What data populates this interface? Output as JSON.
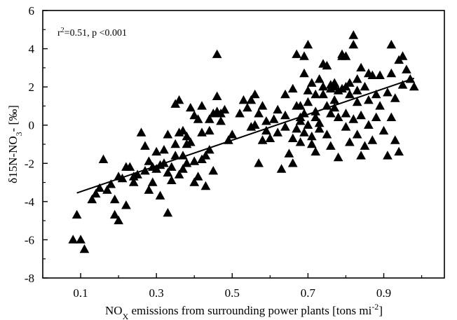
{
  "chart_data": {
    "type": "scatter",
    "xlabel": "NOX emissions from surrounding power plants [tons mi-2]",
    "xlabel_parts": {
      "pre": "NO",
      "sub": "X",
      "post": " emissions from surrounding power plants [tons mi",
      "sup": "-2",
      "end": "]"
    },
    "ylabel": "δ15N-NO3- [‰]",
    "ylabel_parts": {
      "pre": "δ15N-NO",
      "sub": "3",
      "post": "- [‰]"
    },
    "annotation": "r2=0.51, p <0.001",
    "annotation_parts": {
      "pre": "r",
      "sup": "2",
      "post": "=0.51, p <0.001"
    },
    "xlim": [
      0,
      1.06
    ],
    "ylim": [
      -8,
      6
    ],
    "xticks": [
      "0.1",
      "0.3",
      "0.5",
      "0.7",
      "0.9"
    ],
    "xtick_values": [
      0.1,
      0.3,
      0.5,
      0.7,
      0.9
    ],
    "yticks": [
      "6",
      "4",
      "2",
      "0",
      "-2",
      "-4",
      "-6",
      "-8"
    ],
    "ytick_values": [
      6,
      4,
      2,
      0,
      -2,
      -4,
      -6,
      -8
    ],
    "grid": false,
    "marker": "triangle",
    "colors": {
      "marker": "#000000",
      "line": "#000000"
    },
    "trendline": {
      "x": [
        0.09,
        0.98
      ],
      "y": [
        -3.55,
        2.45
      ]
    },
    "points": [
      [
        0.08,
        -6.0
      ],
      [
        0.1,
        -6.0
      ],
      [
        0.11,
        -6.5
      ],
      [
        0.09,
        -4.7
      ],
      [
        0.13,
        -3.9
      ],
      [
        0.14,
        -3.6
      ],
      [
        0.15,
        -3.3
      ],
      [
        0.16,
        -1.8
      ],
      [
        0.18,
        -3.1
      ],
      [
        0.19,
        -4.7
      ],
      [
        0.2,
        -5.0
      ],
      [
        0.19,
        -3.9
      ],
      [
        0.21,
        -2.8
      ],
      [
        0.22,
        -2.2
      ],
      [
        0.23,
        -2.2
      ],
      [
        0.22,
        -4.2
      ],
      [
        0.24,
        -3.0
      ],
      [
        0.25,
        -2.6
      ],
      [
        0.26,
        -0.4
      ],
      [
        0.27,
        -1.1
      ],
      [
        0.28,
        -1.9
      ],
      [
        0.28,
        -3.4
      ],
      [
        0.29,
        -3.0
      ],
      [
        0.3,
        -2.3
      ],
      [
        0.31,
        -2.1
      ],
      [
        0.32,
        -2.0
      ],
      [
        0.31,
        -3.7
      ],
      [
        0.32,
        -1.3
      ],
      [
        0.33,
        -0.5
      ],
      [
        0.33,
        -4.6
      ],
      [
        0.34,
        -2.9
      ],
      [
        0.34,
        -2.2
      ],
      [
        0.35,
        -1.6
      ],
      [
        0.35,
        -1.0
      ],
      [
        0.36,
        -0.4
      ],
      [
        0.36,
        -2.6
      ],
      [
        0.37,
        -0.3
      ],
      [
        0.37,
        -1.6
      ],
      [
        0.38,
        -2.0
      ],
      [
        0.38,
        -1.0
      ],
      [
        0.38,
        -0.6
      ],
      [
        0.39,
        0.9
      ],
      [
        0.4,
        0.5
      ],
      [
        0.4,
        -1.9
      ],
      [
        0.41,
        0.3
      ],
      [
        0.41,
        -2.7
      ],
      [
        0.42,
        -0.4
      ],
      [
        0.42,
        1.0
      ],
      [
        0.43,
        -3.2
      ],
      [
        0.43,
        -1.6
      ],
      [
        0.44,
        -1.3
      ],
      [
        0.45,
        0.6
      ],
      [
        0.46,
        0.7
      ],
      [
        0.46,
        3.7
      ],
      [
        0.46,
        1.5
      ],
      [
        0.47,
        0.6
      ],
      [
        0.48,
        0.8
      ],
      [
        0.49,
        -0.8
      ],
      [
        0.45,
        -2.4
      ],
      [
        0.44,
        -0.3
      ],
      [
        0.36,
        1.3
      ],
      [
        0.39,
        -0.9
      ],
      [
        0.4,
        -3.0
      ],
      [
        0.37,
        -2.3
      ],
      [
        0.33,
        -2.5
      ],
      [
        0.35,
        1.1
      ],
      [
        0.42,
        -1.8
      ],
      [
        0.44,
        0.3
      ],
      [
        0.53,
        1.3
      ],
      [
        0.54,
        0.9
      ],
      [
        0.55,
        1.3
      ],
      [
        0.55,
        -0.1
      ],
      [
        0.56,
        0.0
      ],
      [
        0.57,
        0.6
      ],
      [
        0.58,
        1.0
      ],
      [
        0.59,
        0.2
      ],
      [
        0.59,
        -0.3
      ],
      [
        0.6,
        -0.7
      ],
      [
        0.57,
        -2.0
      ],
      [
        0.56,
        1.6
      ],
      [
        0.61,
        0.3
      ],
      [
        0.62,
        -0.4
      ],
      [
        0.62,
        0.8
      ],
      [
        0.63,
        -2.3
      ],
      [
        0.64,
        0.5
      ],
      [
        0.64,
        1.6
      ],
      [
        0.65,
        -1.5
      ],
      [
        0.66,
        -2.0
      ],
      [
        0.66,
        -0.7
      ],
      [
        0.67,
        3.7
      ],
      [
        0.67,
        -0.2
      ],
      [
        0.68,
        0.4
      ],
      [
        0.68,
        1.0
      ],
      [
        0.68,
        -0.9
      ],
      [
        0.69,
        2.7
      ],
      [
        0.69,
        3.6
      ],
      [
        0.69,
        0.6
      ],
      [
        0.69,
        -0.4
      ],
      [
        0.7,
        1.2
      ],
      [
        0.7,
        0.0
      ],
      [
        0.7,
        4.2
      ],
      [
        0.71,
        2.2
      ],
      [
        0.71,
        -0.6
      ],
      [
        0.71,
        -1.0
      ],
      [
        0.72,
        0.4
      ],
      [
        0.72,
        1.6
      ],
      [
        0.72,
        -1.4
      ],
      [
        0.73,
        0.1
      ],
      [
        0.73,
        2.4
      ],
      [
        0.74,
        3.2
      ],
      [
        0.74,
        1.6
      ],
      [
        0.75,
        1.0
      ],
      [
        0.75,
        -0.5
      ],
      [
        0.75,
        3.1
      ],
      [
        0.76,
        0.6
      ],
      [
        0.76,
        1.9
      ],
      [
        0.76,
        -1.1
      ],
      [
        0.77,
        2.2
      ],
      [
        0.77,
        0.9
      ],
      [
        0.77,
        2.0
      ],
      [
        0.78,
        0.4
      ],
      [
        0.78,
        1.8
      ],
      [
        0.78,
        -1.7
      ],
      [
        0.79,
        1.9
      ],
      [
        0.79,
        3.7
      ],
      [
        0.8,
        2.0
      ],
      [
        0.8,
        3.6
      ],
      [
        0.8,
        0.6
      ],
      [
        0.81,
        1.6
      ],
      [
        0.81,
        -0.9
      ],
      [
        0.81,
        2.2
      ],
      [
        0.82,
        4.2
      ],
      [
        0.82,
        0.3
      ],
      [
        0.82,
        4.7
      ],
      [
        0.83,
        -0.5
      ],
      [
        0.83,
        1.8
      ],
      [
        0.83,
        2.4
      ],
      [
        0.84,
        0.5
      ],
      [
        0.84,
        -1.6
      ],
      [
        0.84,
        3.0
      ],
      [
        0.85,
        2.0
      ],
      [
        0.85,
        -1.1
      ],
      [
        0.86,
        1.3
      ],
      [
        0.86,
        0.0
      ],
      [
        0.87,
        2.6
      ],
      [
        0.87,
        -0.8
      ],
      [
        0.88,
        0.4
      ],
      [
        0.88,
        1.6
      ],
      [
        0.89,
        2.6
      ],
      [
        0.89,
        1.0
      ],
      [
        0.9,
        -0.3
      ],
      [
        0.91,
        -1.6
      ],
      [
        0.91,
        1.7
      ],
      [
        0.92,
        4.2
      ],
      [
        0.92,
        0.4
      ],
      [
        0.92,
        2.7
      ],
      [
        0.93,
        1.4
      ],
      [
        0.93,
        -0.8
      ],
      [
        0.94,
        3.4
      ],
      [
        0.94,
        -1.4
      ],
      [
        0.95,
        3.6
      ],
      [
        0.95,
        2.1
      ],
      [
        0.96,
        2.9
      ],
      [
        0.97,
        2.4
      ],
      [
        0.98,
        2.0
      ],
      [
        0.66,
        1.9
      ],
      [
        0.74,
        2.0
      ],
      [
        0.79,
        3.6
      ],
      [
        0.86,
        2.7
      ],
      [
        0.72,
        0.7
      ],
      [
        0.77,
        1.3
      ],
      [
        0.83,
        1.2
      ],
      [
        0.64,
        -0.1
      ],
      [
        0.7,
        1.8
      ],
      [
        0.76,
        2.1
      ],
      [
        0.67,
        1.0
      ],
      [
        0.73,
        -0.2
      ],
      [
        0.8,
        -0.1
      ],
      [
        0.68,
        0.2
      ],
      [
        0.58,
        -0.8
      ],
      [
        0.52,
        0.6
      ],
      [
        0.5,
        -0.5
      ],
      [
        0.47,
        0.2
      ],
      [
        0.3,
        -1.4
      ],
      [
        0.27,
        -2.4
      ],
      [
        0.24,
        -2.7
      ],
      [
        0.17,
        -3.4
      ],
      [
        0.2,
        -2.7
      ],
      [
        0.29,
        -2.2
      ]
    ]
  }
}
